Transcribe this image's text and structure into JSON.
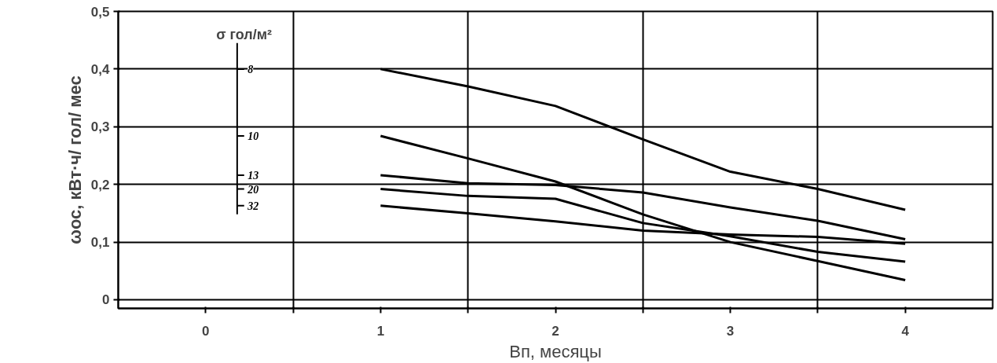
{
  "chart_data": {
    "type": "line",
    "xlabel": "Вп, месяцы",
    "ylabel": "ωос, кВт·ч/ гол/ мес",
    "legend_title": "σ гол/м²",
    "x": [
      1,
      1.5,
      2,
      2.5,
      3,
      3.5,
      4
    ],
    "series": [
      {
        "name": "8",
        "color": "#000000",
        "values": [
          0.4,
          0.37,
          0.336,
          0.278,
          0.222,
          0.192,
          0.156
        ]
      },
      {
        "name": "10",
        "color": "#000000",
        "values": [
          0.284,
          0.245,
          0.205,
          0.148,
          0.1,
          0.067,
          0.034
        ]
      },
      {
        "name": "13",
        "color": "#000000",
        "values": [
          0.216,
          0.202,
          0.199,
          0.186,
          0.16,
          0.137,
          0.105
        ]
      },
      {
        "name": "20",
        "color": "#000000",
        "values": [
          0.192,
          0.18,
          0.175,
          0.133,
          0.11,
          0.083,
          0.066
        ]
      },
      {
        "name": "32",
        "color": "#000000",
        "values": [
          0.163,
          0.15,
          0.136,
          0.12,
          0.113,
          0.109,
          0.097
        ]
      }
    ],
    "xlim": [
      -0.5,
      4.5
    ],
    "xticks": [
      0,
      {
        "value": 0.5,
        "label": null
      },
      1,
      {
        "value": 1.5,
        "label": null
      },
      2,
      {
        "value": 2.5,
        "label": null
      },
      3,
      {
        "value": 3.5,
        "label": null
      },
      4
    ],
    "ylim": [
      -0.015,
      0.5
    ],
    "yticks": [
      0,
      {
        "value": 0.1,
        "label": "0,1"
      },
      {
        "value": 0.2,
        "label": "0,2"
      },
      {
        "value": 0.3,
        "label": "0,3"
      },
      {
        "value": 0.4,
        "label": "0,4"
      },
      {
        "value": 0.5,
        "label": "0,5"
      }
    ],
    "grid": true,
    "legend": "left",
    "marker": "none",
    "line_style": "solid"
  }
}
